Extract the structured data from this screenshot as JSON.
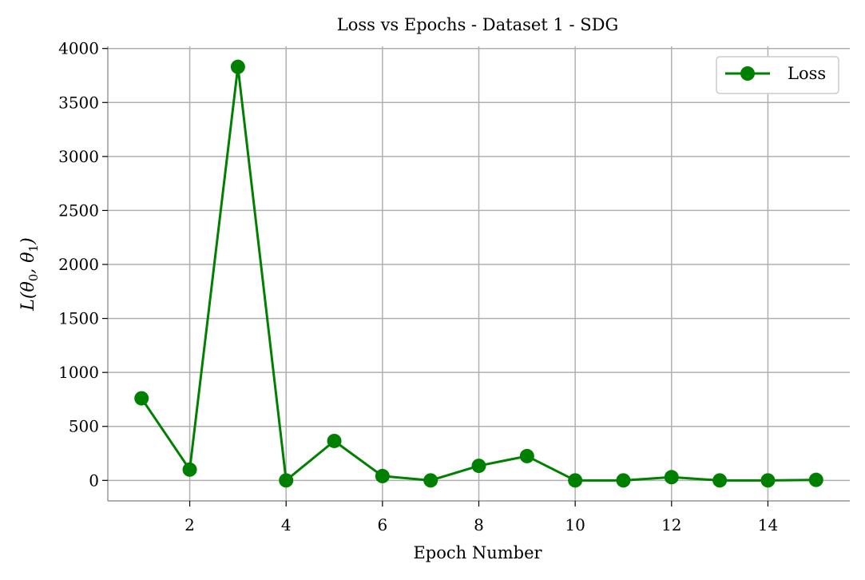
{
  "chart_data": {
    "type": "line",
    "title": "Loss vs Epochs - Dataset 1 - SDG",
    "xlabel": "Epoch Number",
    "ylabel": "L(θ0, θ1)",
    "xlim": [
      0.3,
      15.7
    ],
    "ylim": [
      -190,
      4020
    ],
    "xticks": [
      2,
      4,
      6,
      8,
      10,
      12,
      14
    ],
    "yticks": [
      0,
      500,
      1000,
      1500,
      2000,
      2500,
      3000,
      3500,
      4000
    ],
    "grid": true,
    "legend_position": "top-right",
    "series": [
      {
        "name": "Loss",
        "color": "#008000",
        "marker": "circle",
        "x": [
          1,
          2,
          3,
          4,
          5,
          6,
          7,
          8,
          9,
          10,
          11,
          12,
          13,
          14,
          15
        ],
        "y": [
          760,
          100,
          3830,
          0,
          365,
          40,
          0,
          135,
          225,
          0,
          0,
          30,
          0,
          0,
          5
        ]
      }
    ]
  }
}
